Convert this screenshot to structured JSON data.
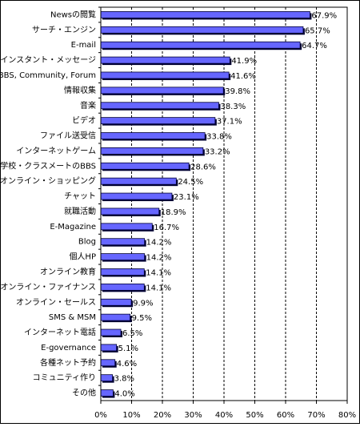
{
  "chart_data": {
    "type": "bar",
    "orientation": "horizontal",
    "color": "#6666ff",
    "categories": [
      "Newsの閲覧",
      "サーチ・エンジン",
      "E-mail",
      "インスタント・メッセージ",
      "BBS, Community, Forum",
      "情報収集",
      "音楽",
      "ビデオ",
      "ファイル送受信",
      "インターネットゲーム",
      "学校・クラスメートのBBS",
      "オンライン・ショッピング",
      "チャット",
      "就職活動",
      "E-Magazine",
      "Blog",
      "個人HP",
      "オンライン教育",
      "オンライン・ファイナンス",
      "オンライン・セールス",
      "SMS & MSM",
      "インターネット電話",
      "E-governance",
      "各種ネット予約",
      "コミュニティ作り",
      "その他"
    ],
    "values": [
      67.9,
      65.7,
      64.7,
      41.9,
      41.6,
      39.8,
      38.3,
      37.1,
      33.8,
      33.2,
      28.6,
      24.5,
      23.1,
      18.9,
      16.7,
      14.2,
      14.2,
      14.1,
      14.1,
      9.9,
      9.5,
      6.5,
      5.1,
      4.6,
      3.8,
      4.0
    ],
    "value_labels": [
      "67.9%",
      "65.7%",
      "64.7%",
      "41.9%",
      "41.6%",
      "39.8%",
      "38.3%",
      "37.1%",
      "33.8%",
      "33.2%",
      "28.6%",
      "24.5%",
      "23.1%",
      "18.9%",
      "16.7%",
      "14.2%",
      "14.2%",
      "14.1%",
      "14.1%",
      "9.9%",
      "9.5%",
      "6.5%",
      "5.1%",
      "4.6%",
      "3.8%",
      "4.0%"
    ],
    "xlim": [
      0,
      80
    ],
    "xticks": [
      {
        "value": 0,
        "label": "0%"
      },
      {
        "value": 10,
        "label": "10%"
      },
      {
        "value": 20,
        "label": "20%"
      },
      {
        "value": 30,
        "label": "30%"
      },
      {
        "value": 40,
        "label": "40%"
      },
      {
        "value": 50,
        "label": "50%"
      },
      {
        "value": 60,
        "label": "60%"
      },
      {
        "value": 70,
        "label": "70%"
      },
      {
        "value": 80,
        "label": "80%"
      }
    ],
    "grid": true
  }
}
